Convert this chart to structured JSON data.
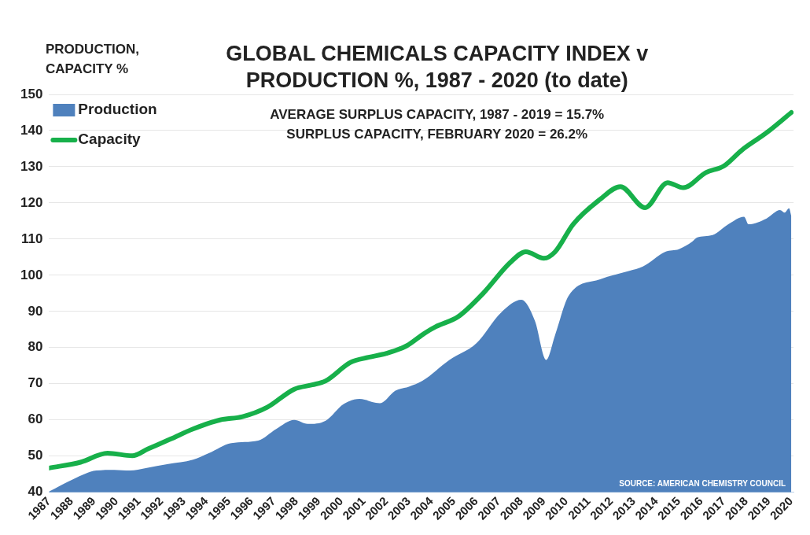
{
  "chart_data": {
    "type": "line",
    "title": "GLOBAL CHEMICALS CAPACITY INDEX v\nPRODUCTION %, 1987 - 2020 (to date)",
    "subtitle": "AVERAGE SURPLUS CAPACITY, 1987 - 2019 = 15.7%\nSURPLUS CAPACITY, FEBRUARY 2020 = 26.2%",
    "ylabel": "PRODUCTION,\nCAPACITY %",
    "annotations": [
      "SOURCE: AMERICAN CHEMISTRY COUNCIL"
    ],
    "xlim": [
      1987,
      2020.1
    ],
    "xticks": [
      1987,
      1988,
      1989,
      1990,
      1991,
      1992,
      1993,
      1994,
      1995,
      1996,
      1997,
      1998,
      1999,
      2000,
      2001,
      2002,
      2003,
      2004,
      2005,
      2006,
      2007,
      2008,
      2009,
      2010,
      2011,
      2012,
      2013,
      2014,
      2015,
      2016,
      2017,
      2018,
      2019,
      2020
    ],
    "ylim": [
      40,
      150
    ],
    "yticks": [
      40,
      50,
      60,
      70,
      80,
      90,
      100,
      110,
      120,
      130,
      140,
      150
    ],
    "grid": "y",
    "legend": "top left",
    "marker": "none",
    "series": [
      {
        "name": "Production",
        "type": "area",
        "color": "#4f81bd",
        "x": [
          1987.0,
          1988.1,
          1989.1,
          1989.9,
          1990.6,
          1991.3,
          1992.3,
          1993.4,
          1994.1,
          1995.1,
          1996.3,
          1997.1,
          1997.9,
          1998.5,
          1999.3,
          2000.1,
          2000.8,
          2001.7,
          2002.4,
          2003.0,
          2003.6,
          2004.8,
          2006.0,
          2007.1,
          2008.0,
          2008.6,
          2009.1,
          2009.5,
          2010.1,
          2011.5,
          2012.8,
          2013.4,
          2014.4,
          2015.0,
          2015.6,
          2015.8,
          2016.5,
          2017.2,
          2017.9,
          2018.1,
          2018.9,
          2019.5,
          2019.7,
          2019.9,
          2020.0
        ],
        "values": [
          40.2,
          43.7,
          46.0,
          46.2,
          46.0,
          46.7,
          47.8,
          49.0,
          50.8,
          53.6,
          54.3,
          57.5,
          60.0,
          58.9,
          59.8,
          64.4,
          65.8,
          64.6,
          68.1,
          69.2,
          70.8,
          76.6,
          81.2,
          89.7,
          93.2,
          87.4,
          76.6,
          83.5,
          94.3,
          98.9,
          101.2,
          102.4,
          106.5,
          107.2,
          109.3,
          110.4,
          111.1,
          114.1,
          116.2,
          114.1,
          115.7,
          118.0,
          117.3,
          118.5,
          116.4
        ]
      },
      {
        "name": "Capacity",
        "type": "line",
        "color": "#17b04a",
        "x": [
          1987.0,
          1988.4,
          1989.6,
          1990.7,
          1991.4,
          1992.4,
          1993.4,
          1994.6,
          1995.6,
          1996.7,
          1997.9,
          1998.7,
          1999.3,
          2000.4,
          2001.2,
          2002.0,
          2002.9,
          2003.7,
          2004.2,
          2005.2,
          2006.3,
          2007.5,
          2008.2,
          2009.0,
          2009.5,
          2010.3,
          2011.5,
          2012.4,
          2013.5,
          2014.5,
          2015.2,
          2016.2,
          2017.0,
          2017.8,
          2018.9,
          2020.0
        ],
        "values": [
          46.7,
          48.3,
          50.8,
          50.1,
          52.0,
          54.7,
          57.5,
          60.0,
          60.9,
          63.5,
          68.5,
          69.7,
          70.8,
          75.9,
          77.3,
          78.4,
          80.5,
          84.0,
          85.8,
          88.6,
          95.0,
          103.5,
          106.5,
          104.7,
          106.5,
          114.1,
          121.0,
          124.5,
          118.7,
          125.6,
          124.2,
          128.4,
          130.2,
          134.6,
          139.4,
          145.0
        ]
      }
    ]
  }
}
